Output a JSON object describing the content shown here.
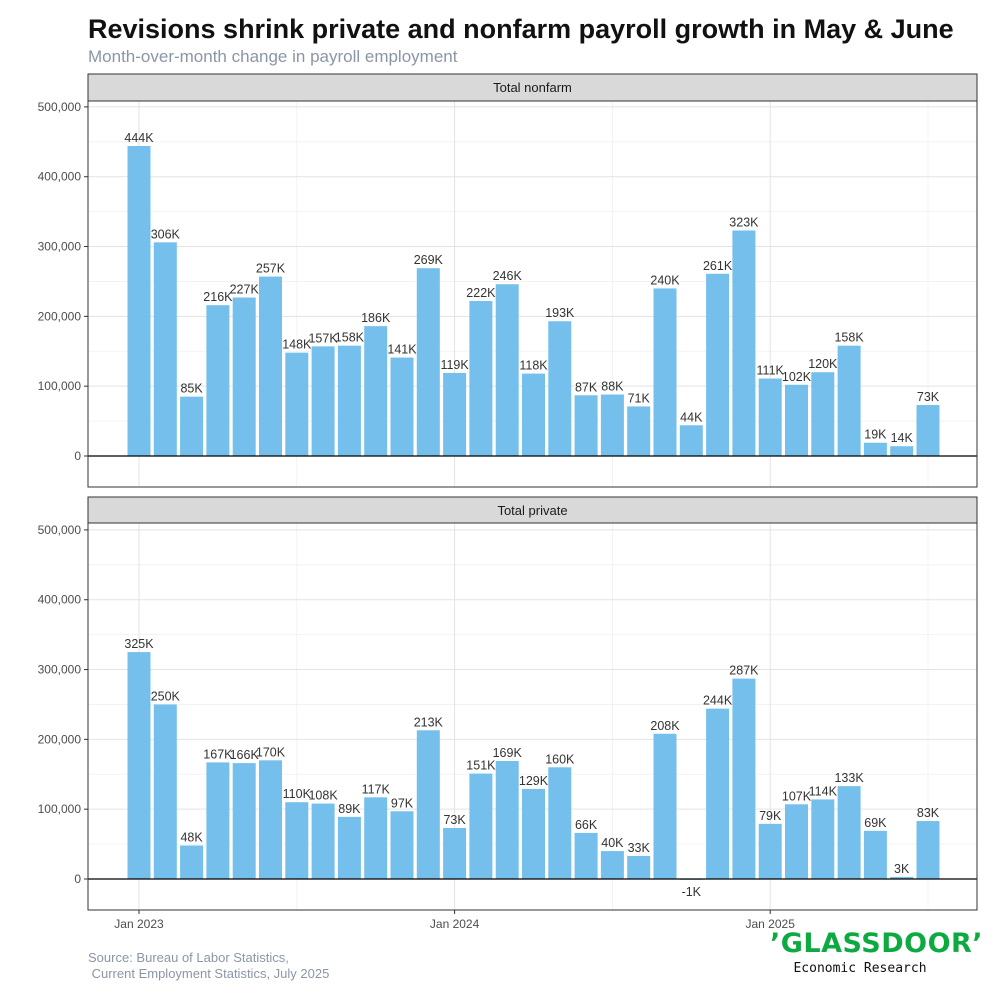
{
  "chart_data": {
    "type": "bar",
    "title": "Revisions shrink private and nonfarm payroll growth in May & June",
    "subtitle": "Month-over-month change in payroll employment",
    "ylim": [
      -45000,
      500000
    ],
    "yticks": [
      0,
      100000,
      200000,
      300000,
      400000,
      500000
    ],
    "ytick_labels": [
      "0",
      "100,000",
      "200,000",
      "300,000",
      "400,000",
      "500,000"
    ],
    "xticks": [
      "2023-01",
      "2024-01",
      "2025-01"
    ],
    "xtick_labels": [
      "Jan 2023",
      "Jan 2024",
      "Jan 2025"
    ],
    "x": [
      "2023-01",
      "2023-02",
      "2023-03",
      "2023-04",
      "2023-05",
      "2023-06",
      "2023-07",
      "2023-08",
      "2023-09",
      "2023-10",
      "2023-11",
      "2023-12",
      "2024-01",
      "2024-02",
      "2024-03",
      "2024-04",
      "2024-05",
      "2024-06",
      "2024-07",
      "2024-08",
      "2024-09",
      "2024-10",
      "2024-11",
      "2024-12",
      "2025-01",
      "2025-02",
      "2025-03",
      "2025-04",
      "2025-05",
      "2025-06",
      "2025-07"
    ],
    "grid": true,
    "bar_color": "#74bfec",
    "panels": [
      {
        "name": "Total nonfarm",
        "values": [
          444000,
          306000,
          85000,
          216000,
          227000,
          257000,
          148000,
          157000,
          158000,
          186000,
          141000,
          269000,
          119000,
          222000,
          246000,
          118000,
          193000,
          87000,
          88000,
          71000,
          240000,
          44000,
          261000,
          323000,
          111000,
          102000,
          120000,
          158000,
          19000,
          14000,
          73000
        ],
        "labels": [
          "444K",
          "306K",
          "85K",
          "216K",
          "227K",
          "257K",
          "148K",
          "157K",
          "158K",
          "186K",
          "141K",
          "269K",
          "119K",
          "222K",
          "246K",
          "118K",
          "193K",
          "87K",
          "88K",
          "71K",
          "240K",
          "44K",
          "261K",
          "323K",
          "111K",
          "102K",
          "120K",
          "158K",
          "19K",
          "14K",
          "73K"
        ]
      },
      {
        "name": "Total private",
        "values": [
          325000,
          250000,
          48000,
          167000,
          166000,
          170000,
          110000,
          108000,
          89000,
          117000,
          97000,
          213000,
          73000,
          151000,
          169000,
          129000,
          160000,
          66000,
          40000,
          33000,
          208000,
          -1000,
          244000,
          287000,
          79000,
          107000,
          114000,
          133000,
          69000,
          3000,
          83000
        ],
        "labels": [
          "325K",
          "250K",
          "48K",
          "167K",
          "166K",
          "170K",
          "110K",
          "108K",
          "89K",
          "117K",
          "97K",
          "213K",
          "73K",
          "151K",
          "169K",
          "129K",
          "160K",
          "66K",
          "40K",
          "33K",
          "208K",
          "-1K",
          "244K",
          "287K",
          "79K",
          "107K",
          "114K",
          "133K",
          "69K",
          "3K",
          "83K"
        ]
      }
    ]
  },
  "source": {
    "line1": "Source: Bureau of Labor Statistics,",
    "line2": " Current Employment Statistics, July 2025"
  },
  "logo": {
    "word": "’GLASSDOOR’",
    "tagline": "Economic Research"
  }
}
